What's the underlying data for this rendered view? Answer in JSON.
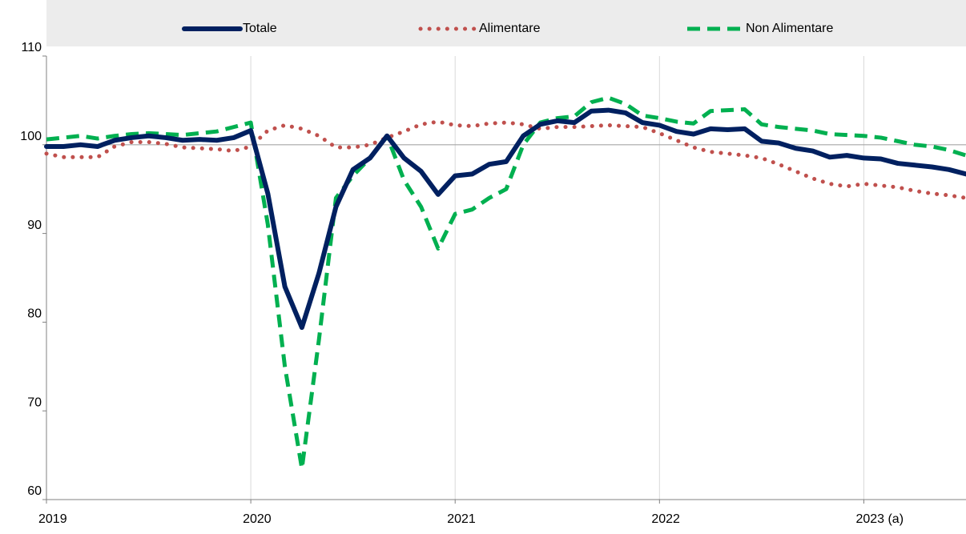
{
  "chart_data": {
    "type": "line",
    "categories": [
      "2019",
      null,
      null,
      null,
      null,
      null,
      null,
      null,
      null,
      null,
      null,
      null,
      "2020",
      null,
      null,
      null,
      null,
      null,
      null,
      null,
      null,
      null,
      null,
      null,
      "2021",
      null,
      null,
      null,
      null,
      null,
      null,
      null,
      null,
      null,
      null,
      null,
      "2022",
      null,
      null,
      null,
      null,
      null,
      null,
      null,
      null,
      null,
      null,
      null,
      "2023 (a)",
      null,
      null,
      null,
      null,
      null,
      null
    ],
    "series": [
      {
        "name": "Totale",
        "color": "#002060",
        "style": "solid",
        "values": [
          99.8,
          99.8,
          100.0,
          99.8,
          100.5,
          100.8,
          101.0,
          100.8,
          100.5,
          100.6,
          100.5,
          100.8,
          101.6,
          94.5,
          84,
          79.4,
          85.5,
          93,
          97.2,
          98.5,
          101,
          98.5,
          97,
          94.4,
          96.5,
          96.7,
          97.8,
          98.1,
          101,
          102.3,
          102.7,
          102.5,
          103.8,
          103.9,
          103.6,
          102.5,
          102.2,
          101.5,
          101.2,
          101.8,
          101.7,
          101.8,
          100.4,
          100.2,
          99.6,
          99.3,
          98.6,
          98.8,
          98.5,
          98.4,
          97.9,
          97.7,
          97.5,
          97.2,
          96.7
        ]
      },
      {
        "name": "Alimentare",
        "color": "#c0504d",
        "style": "dotted",
        "values": [
          99,
          98.6,
          98.6,
          98.6,
          99.8,
          100.3,
          100.3,
          100.1,
          99.7,
          99.6,
          99.5,
          99.3,
          99.8,
          101.6,
          102.2,
          101.8,
          101,
          99.7,
          99.7,
          100,
          100.8,
          101.5,
          102.3,
          102.6,
          102.2,
          102.1,
          102.4,
          102.5,
          102.3,
          101.8,
          102,
          102,
          102.1,
          102.2,
          102.1,
          102,
          101.3,
          100.5,
          99.7,
          99.2,
          99,
          98.8,
          98.5,
          97.8,
          97,
          96.2,
          95.6,
          95.3,
          95.6,
          95.4,
          95.2,
          94.8,
          94.5,
          94.3,
          94
        ]
      },
      {
        "name": "Non Alimentare",
        "color": "#00b050",
        "style": "dashed",
        "values": [
          100.6,
          100.8,
          101,
          100.7,
          101,
          101.2,
          101.3,
          101.2,
          101.1,
          101.3,
          101.5,
          102,
          102.5,
          91,
          75,
          63.5,
          78,
          94,
          96.5,
          98.5,
          101,
          96,
          93,
          88.3,
          92.2,
          92.7,
          94,
          95,
          100,
          102.5,
          103,
          103.2,
          104.8,
          105.3,
          104.6,
          103.3,
          103,
          102.6,
          102.4,
          103.8,
          103.9,
          104,
          102.3,
          102,
          101.8,
          101.6,
          101.2,
          101.1,
          101,
          100.8,
          100.4,
          100,
          99.8,
          99.4,
          98.8
        ]
      }
    ],
    "ylim": [
      60,
      110
    ],
    "yticks": [
      60,
      70,
      80,
      90,
      100,
      110
    ],
    "reference_line": 100,
    "legend": "top"
  }
}
